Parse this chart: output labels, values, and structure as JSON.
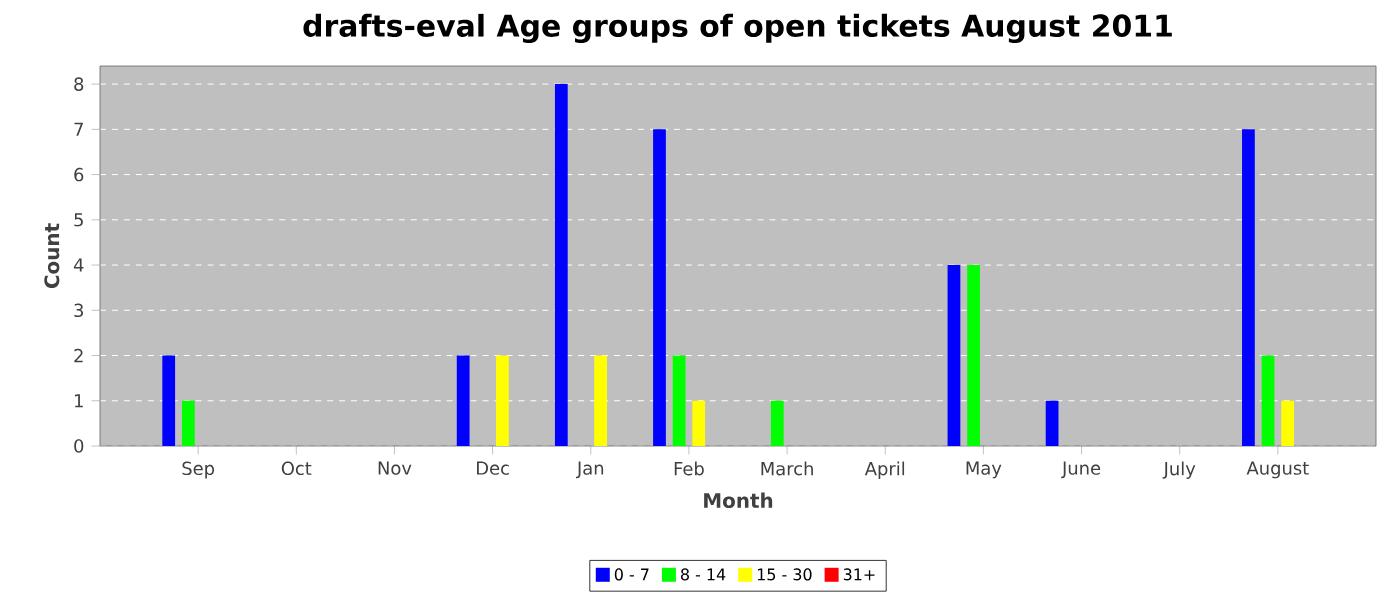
{
  "chart_data": {
    "type": "bar",
    "title": "drafts-eval Age groups of open tickets August 2011",
    "xlabel": "Month",
    "ylabel": "Count",
    "categories": [
      "Sep",
      "Oct",
      "Nov",
      "Dec",
      "Jan",
      "Feb",
      "March",
      "April",
      "May",
      "June",
      "July",
      "August"
    ],
    "series": [
      {
        "name": "0 - 7",
        "color": "#0000ff",
        "values": [
          2,
          0,
          0,
          2,
          8,
          7,
          0,
          0,
          4,
          1,
          0,
          7
        ]
      },
      {
        "name": "8 - 14",
        "color": "#00ff00",
        "values": [
          1,
          0,
          0,
          0,
          0,
          2,
          1,
          0,
          4,
          0,
          0,
          2
        ]
      },
      {
        "name": "15 - 30",
        "color": "#ffff00",
        "values": [
          0,
          0,
          0,
          2,
          2,
          1,
          0,
          0,
          0,
          0,
          0,
          1
        ]
      },
      {
        "name": "31+",
        "color": "#ff0000",
        "values": [
          0,
          0,
          0,
          0,
          0,
          0,
          0,
          0,
          0,
          0,
          0,
          0
        ]
      }
    ],
    "ylim": [
      0,
      8.4
    ],
    "yticks": [
      0,
      1,
      2,
      3,
      4,
      5,
      6,
      7,
      8
    ],
    "grid": "y",
    "legend": "bottom"
  }
}
